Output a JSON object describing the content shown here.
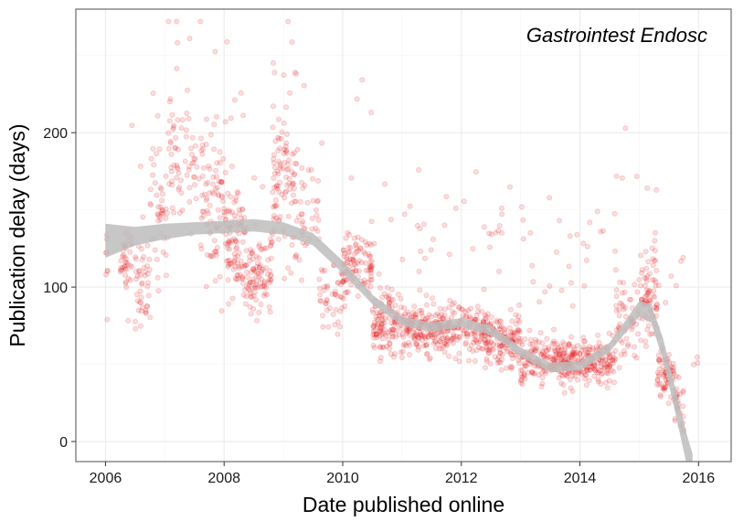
{
  "chart_data": {
    "type": "scatter",
    "title": "",
    "annotation": "Gastrointest Endosc",
    "xlabel": "Date published online",
    "ylabel": "Publication delay (days)",
    "x_unit": "year",
    "xlim": [
      2005.5,
      2016.55
    ],
    "ylim": [
      -13,
      280
    ],
    "x_ticks": [
      2006,
      2008,
      2010,
      2012,
      2014,
      2016
    ],
    "x_tick_labels": [
      "2006",
      "2008",
      "2010",
      "2012",
      "2014",
      "2016"
    ],
    "y_ticks": [
      0,
      100,
      200
    ],
    "y_tick_labels": [
      "0",
      "100",
      "200"
    ],
    "grid": true,
    "legend": "none",
    "colors": {
      "points": "#e31a1c",
      "smooth_band": "#bdbdbd",
      "grid": "#ebebeb",
      "panel_border": "#7f7f7f"
    },
    "point_opacity": 0.15,
    "series": [
      {
        "kind": "points",
        "clusters": [
          {
            "x_range": [
              2006.0,
              2006.05
            ],
            "y_mean": 95,
            "y_sd": 40,
            "n": 8
          },
          {
            "x_range": [
              2006.25,
              2006.45
            ],
            "y_mean": 115,
            "y_sd": 22,
            "n": 40
          },
          {
            "x_range": [
              2006.5,
              2006.75
            ],
            "y_mean": 100,
            "y_sd": 22,
            "n": 45
          },
          {
            "x_range": [
              2006.75,
              2007.05
            ],
            "y_mean": 145,
            "y_sd": 30,
            "n": 45
          },
          {
            "x_range": [
              2007.05,
              2007.6
            ],
            "y_mean": 185,
            "y_sd": 32,
            "n": 70
          },
          {
            "x_range": [
              2007.6,
              2008.05
            ],
            "y_mean": 150,
            "y_sd": 45,
            "n": 95
          },
          {
            "x_range": [
              2008.05,
              2008.35
            ],
            "y_mean": 125,
            "y_sd": 30,
            "n": 90
          },
          {
            "x_range": [
              2008.35,
              2008.8
            ],
            "y_mean": 108,
            "y_sd": 22,
            "n": 100
          },
          {
            "x_range": [
              2008.8,
              2009.2
            ],
            "y_mean": 170,
            "y_sd": 42,
            "n": 100
          },
          {
            "x_range": [
              2009.2,
              2009.6
            ],
            "y_mean": 150,
            "y_sd": 35,
            "n": 45
          },
          {
            "x_range": [
              2009.6,
              2010.0
            ],
            "y_mean": 95,
            "y_sd": 22,
            "n": 45
          },
          {
            "x_range": [
              2010.0,
              2010.5
            ],
            "y_mean": 115,
            "y_sd": 18,
            "n": 110
          },
          {
            "x_range": [
              2010.5,
              2011.0
            ],
            "y_mean": 78,
            "y_sd": 18,
            "n": 130
          },
          {
            "x_range": [
              2011.0,
              2011.6
            ],
            "y_mean": 72,
            "y_sd": 14,
            "n": 160
          },
          {
            "x_range": [
              2011.6,
              2012.4
            ],
            "y_mean": 73,
            "y_sd": 15,
            "n": 180
          },
          {
            "x_range": [
              2012.4,
              2013.0
            ],
            "y_mean": 66,
            "y_sd": 15,
            "n": 160
          },
          {
            "x_range": [
              2013.0,
              2013.8
            ],
            "y_mean": 53,
            "y_sd": 13,
            "n": 200
          },
          {
            "x_range": [
              2013.8,
              2014.6
            ],
            "y_mean": 52,
            "y_sd": 12,
            "n": 200
          },
          {
            "x_range": [
              2014.6,
              2015.0
            ],
            "y_mean": 80,
            "y_sd": 25,
            "n": 60
          },
          {
            "x_range": [
              2015.0,
              2015.3
            ],
            "y_mean": 95,
            "y_sd": 25,
            "n": 80
          },
          {
            "x_range": [
              2015.3,
              2015.6
            ],
            "y_mean": 45,
            "y_sd": 15,
            "n": 70
          },
          {
            "x_range": [
              2015.6,
              2015.75
            ],
            "y_mean": 25,
            "y_sd": 14,
            "n": 30
          },
          {
            "x_range": [
              2015.85,
              2016.0
            ],
            "y_mean": 50,
            "y_sd": 5,
            "n": 3
          }
        ]
      },
      {
        "kind": "smooth",
        "x": [
          2006.0,
          2006.5,
          2007.0,
          2007.5,
          2008.0,
          2008.5,
          2009.0,
          2009.5,
          2010.0,
          2010.5,
          2011.0,
          2011.5,
          2012.0,
          2012.5,
          2013.0,
          2013.5,
          2014.0,
          2014.5,
          2014.8,
          2015.0,
          2015.2,
          2015.4,
          2015.6,
          2015.8,
          2015.9
        ],
        "y": [
          130,
          133,
          136,
          138,
          139,
          140,
          138,
          131,
          113,
          92,
          78,
          74,
          77,
          72,
          58,
          48,
          49,
          61,
          76,
          86,
          83,
          60,
          28,
          -5,
          -20
        ],
        "band_halfwidth": [
          11,
          6,
          5,
          4,
          4,
          4,
          4,
          4,
          4,
          3,
          3,
          3,
          3,
          3,
          3,
          3,
          3,
          3,
          4,
          5,
          6,
          7,
          8,
          10,
          12
        ]
      }
    ]
  }
}
